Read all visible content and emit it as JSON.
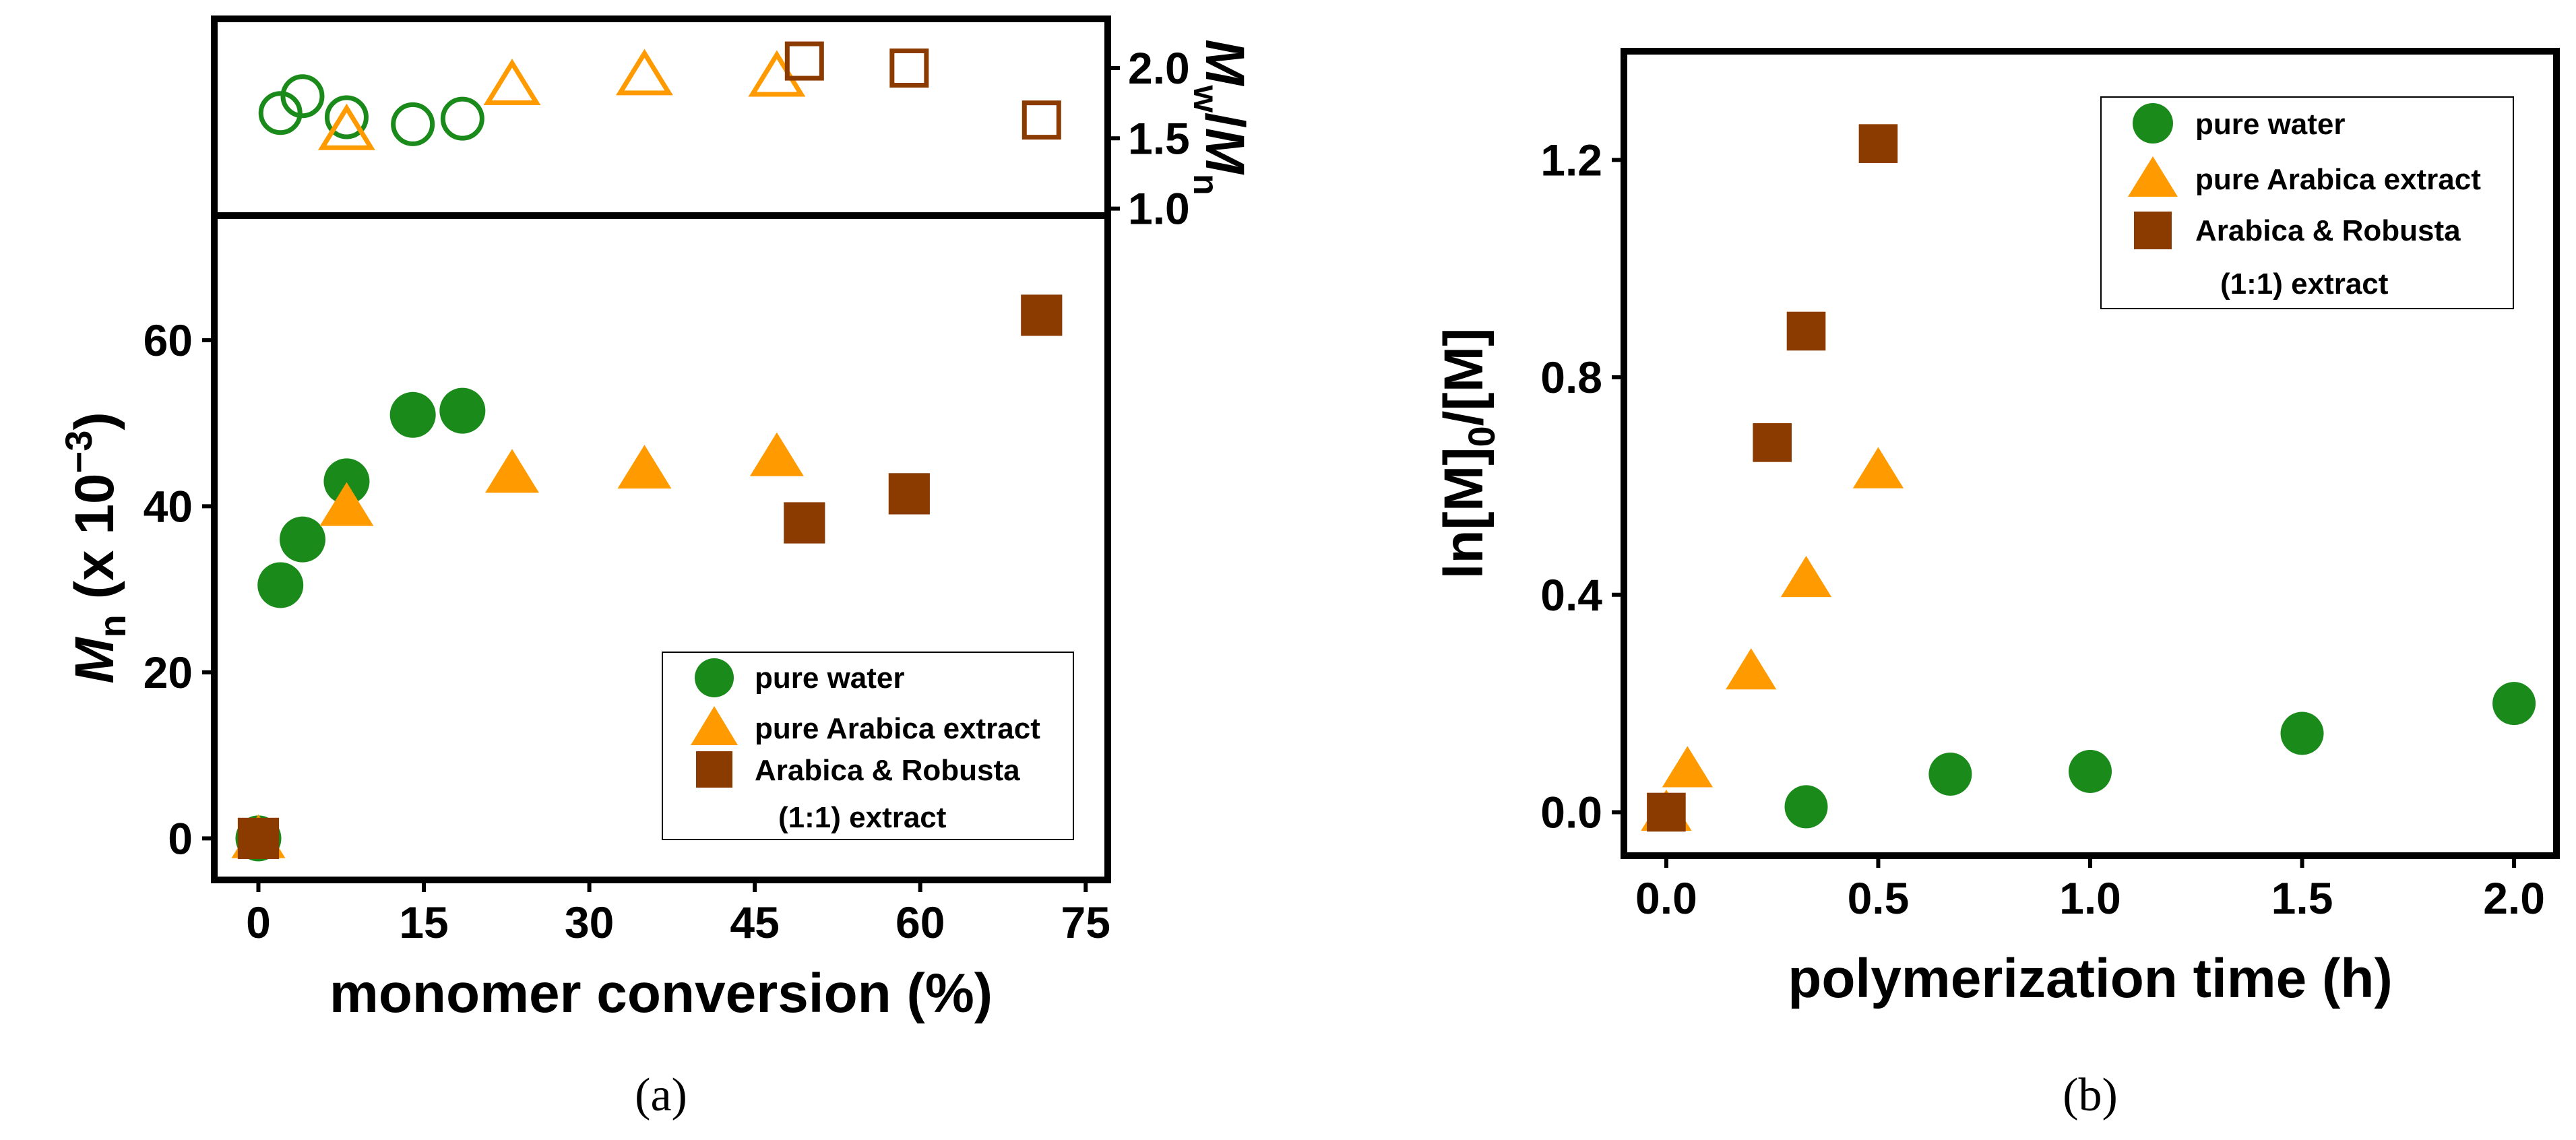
{
  "colors": {
    "green": "#1a8a1a",
    "orange": "#ff9a00",
    "brown": "#8b3a00",
    "axis": "#000000"
  },
  "chart_data": [
    {
      "panel": "a-top",
      "type": "scatter",
      "title": "",
      "ylabel_parts": {
        "m1": "M",
        "s1": "w",
        "slash": "/",
        "m2": "M",
        "s2": "n"
      },
      "xlim": [
        -4,
        77
      ],
      "ylim": [
        0.95,
        2.35
      ],
      "yticks": [
        1.0,
        1.5,
        2.0
      ],
      "ytick_labels": [
        "1.0",
        "1.5",
        "2.0"
      ],
      "series": [
        {
          "name": "pure water",
          "marker": "circle",
          "filled": false,
          "color": "green",
          "x": [
            2,
            4,
            8,
            14,
            18.5
          ],
          "y": [
            1.68,
            1.8,
            1.65,
            1.6,
            1.64
          ]
        },
        {
          "name": "pure Arabica extract",
          "marker": "triangle",
          "filled": false,
          "color": "orange",
          "x": [
            8,
            23,
            35,
            47
          ],
          "y": [
            1.56,
            1.88,
            1.95,
            1.94
          ]
        },
        {
          "name": "Arabica & Robusta (1:1) extract",
          "marker": "square",
          "filled": false,
          "color": "brown",
          "x": [
            49.5,
            59,
            71
          ],
          "y": [
            2.05,
            2.0,
            1.63
          ]
        }
      ]
    },
    {
      "panel": "a-bottom",
      "type": "scatter",
      "title": "",
      "xlabel": "monomer conversion (%)",
      "ylabel_parts": {
        "m": "M",
        "s": "n",
        "rest": " (x 10",
        "exp": "−3",
        "close": ")"
      },
      "xlim": [
        -4,
        77
      ],
      "ylim": [
        -5,
        75
      ],
      "xticks": [
        0,
        15,
        30,
        45,
        60,
        75
      ],
      "xtick_labels": [
        "0",
        "15",
        "30",
        "45",
        "60",
        "75"
      ],
      "yticks": [
        0,
        20,
        40,
        60
      ],
      "ytick_labels": [
        "0",
        "20",
        "40",
        "60"
      ],
      "legend": {
        "position": "lower-right",
        "entries": [
          "pure water",
          "pure Arabica extract",
          "Arabica & Robusta",
          "(1:1) extract"
        ]
      },
      "series": [
        {
          "name": "pure water",
          "marker": "circle",
          "filled": true,
          "color": "green",
          "x": [
            0,
            2,
            4,
            8,
            14,
            18.5
          ],
          "y": [
            0,
            30.5,
            36,
            43,
            51,
            51.5
          ]
        },
        {
          "name": "pure Arabica extract",
          "marker": "triangle",
          "filled": true,
          "color": "orange",
          "x": [
            0,
            8,
            23,
            35,
            47
          ],
          "y": [
            0,
            40,
            44,
            44.5,
            46
          ]
        },
        {
          "name": "Arabica & Robusta (1:1) extract",
          "marker": "square",
          "filled": true,
          "color": "brown",
          "x": [
            0,
            49.5,
            59,
            71
          ],
          "y": [
            0,
            38,
            41.5,
            63
          ]
        }
      ],
      "caption": "(a)"
    },
    {
      "panel": "b",
      "type": "scatter",
      "title": "",
      "xlabel": "polymerization time (h)",
      "ylabel_parts": {
        "a": "ln[M]",
        "s": "0",
        "b": "/[M]"
      },
      "xlim": [
        -0.1,
        2.1
      ],
      "ylim": [
        -0.08,
        1.4
      ],
      "xticks": [
        0,
        0.5,
        1.0,
        1.5,
        2.0
      ],
      "xtick_labels": [
        "0.0",
        "0.5",
        "1.0",
        "1.5",
        "2.0"
      ],
      "yticks": [
        0,
        0.4,
        0.8,
        1.2
      ],
      "ytick_labels": [
        "0.0",
        "0.4",
        "0.8",
        "1.2"
      ],
      "legend": {
        "position": "top-right",
        "entries": [
          "pure water",
          "pure Arabica extract",
          "Arabica & Robusta",
          "(1:1) extract"
        ]
      },
      "series": [
        {
          "name": "pure water",
          "marker": "circle",
          "filled": true,
          "color": "green",
          "x": [
            0.33,
            0.67,
            1.0,
            1.5,
            2.0
          ],
          "y": [
            0.01,
            0.07,
            0.075,
            0.145,
            0.2
          ]
        },
        {
          "name": "pure Arabica extract",
          "marker": "triangle",
          "filled": true,
          "color": "orange",
          "x": [
            0,
            0.05,
            0.2,
            0.33,
            0.5
          ],
          "y": [
            0,
            0.08,
            0.26,
            0.43,
            0.63
          ]
        },
        {
          "name": "Arabica & Robusta (1:1) extract",
          "marker": "square",
          "filled": true,
          "color": "brown",
          "x": [
            0,
            0.25,
            0.33,
            0.5
          ],
          "y": [
            0,
            0.68,
            0.885,
            1.23
          ]
        }
      ],
      "caption": "(b)"
    }
  ]
}
